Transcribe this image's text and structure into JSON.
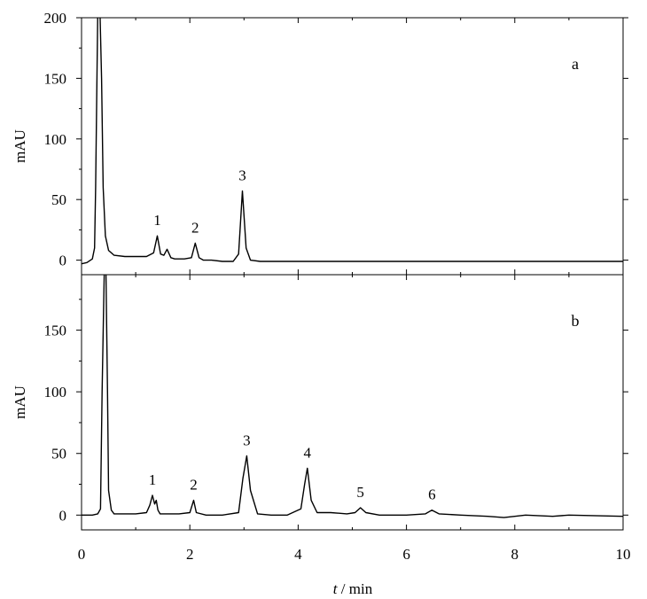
{
  "chart_data": {
    "type": "line",
    "xlabel_italic": "t",
    "xlabel_rest": " / min",
    "xlim": [
      0,
      10
    ],
    "x_ticks": [
      0,
      2,
      4,
      6,
      8,
      10
    ],
    "panels": [
      {
        "label": "a",
        "ylabel": "mAU",
        "ylim": [
          -12,
          200
        ],
        "y_ticks": [
          0,
          50,
          100,
          150,
          200
        ],
        "peaks": [
          {
            "label": "1",
            "t": 1.4,
            "height": 20
          },
          {
            "label": "2",
            "t": 2.1,
            "height": 14
          },
          {
            "label": "3",
            "t": 2.97,
            "height": 57
          }
        ],
        "series": [
          {
            "x": [
              0,
              0.1,
              0.2,
              0.24,
              0.26,
              0.3,
              0.34,
              0.37,
              0.4,
              0.44,
              0.5,
              0.6,
              0.8,
              1.0,
              1.2,
              1.33,
              1.4,
              1.46,
              1.52,
              1.58,
              1.65,
              1.72,
              1.9,
              2.03,
              2.1,
              2.17,
              2.25,
              2.4,
              2.6,
              2.8,
              2.9,
              2.97,
              3.04,
              3.12,
              3.3,
              4.0,
              5.0,
              6.0,
              7.0,
              8.0,
              9.0,
              10.0
            ],
            "y": [
              -3,
              -2,
              1,
              10,
              60,
              205,
              205,
              150,
              60,
              20,
              8,
              4,
              3,
              3,
              3,
              6,
              20,
              5,
              4,
              9,
              2,
              1,
              1,
              2,
              14,
              2,
              0,
              0,
              -1,
              -1,
              5,
              57,
              10,
              0,
              -1,
              -1,
              -1,
              -1,
              -1,
              -1,
              -1,
              -1
            ]
          }
        ]
      },
      {
        "label": "b",
        "ylabel": "mAU",
        "ylim": [
          -12,
          195
        ],
        "y_ticks": [
          0,
          50,
          100,
          150
        ],
        "peaks": [
          {
            "label": "1",
            "t": 1.31,
            "height": 16
          },
          {
            "label": "2",
            "t": 2.07,
            "height": 12
          },
          {
            "label": "3",
            "t": 3.05,
            "height": 48
          },
          {
            "label": "4",
            "t": 4.17,
            "height": 38
          },
          {
            "label": "5",
            "t": 5.15,
            "height": 6
          },
          {
            "label": "6",
            "t": 6.47,
            "height": 4
          }
        ],
        "series": [
          {
            "x": [
              0,
              0.2,
              0.3,
              0.35,
              0.38,
              0.42,
              0.45,
              0.48,
              0.5,
              0.55,
              0.6,
              0.8,
              1.0,
              1.2,
              1.26,
              1.31,
              1.35,
              1.38,
              1.41,
              1.45,
              1.6,
              1.8,
              2.0,
              2.07,
              2.12,
              2.3,
              2.6,
              2.9,
              2.98,
              3.05,
              3.12,
              3.25,
              3.5,
              3.8,
              4.05,
              4.12,
              4.17,
              4.24,
              4.35,
              4.6,
              4.9,
              5.05,
              5.15,
              5.25,
              5.5,
              6.0,
              6.35,
              6.47,
              6.6,
              7.0,
              7.5,
              7.8,
              8.2,
              8.7,
              9.0,
              10.0
            ],
            "y": [
              0,
              0,
              1,
              5,
              100,
              200,
              200,
              100,
              20,
              4,
              1,
              1,
              1,
              2,
              8,
              16,
              9,
              12,
              4,
              1,
              1,
              1,
              2,
              12,
              2,
              0,
              0,
              2,
              30,
              48,
              20,
              1,
              0,
              0,
              5,
              25,
              38,
              12,
              2,
              2,
              1,
              2,
              6,
              2,
              0,
              0,
              1,
              4,
              1,
              0,
              -1,
              -2,
              0,
              -1,
              0,
              -1
            ]
          }
        ]
      }
    ]
  }
}
